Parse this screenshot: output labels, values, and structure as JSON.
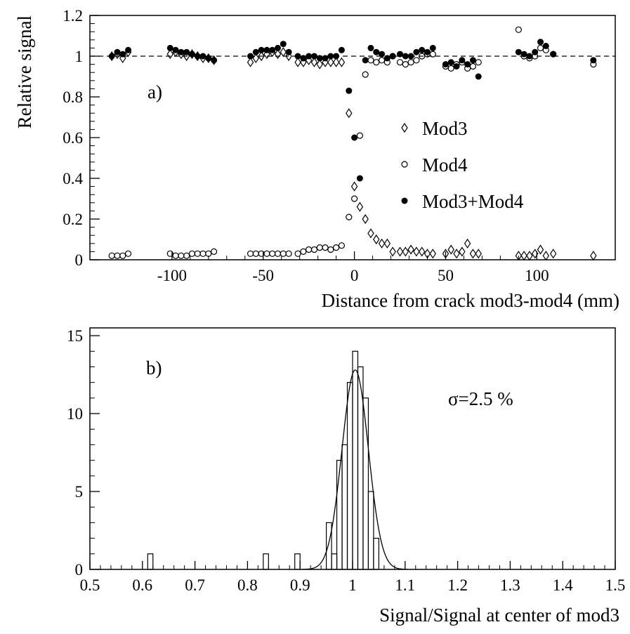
{
  "chart_data": [
    {
      "type": "scatter",
      "ylabel": "Relative signal",
      "xlabel": "Distance from crack mod3-mod4 (mm)",
      "annotation": "a)",
      "xlim": [
        -145,
        143
      ],
      "ylim": [
        0,
        1.2
      ],
      "xticks": [
        -100,
        -50,
        0,
        50,
        100
      ],
      "yticks": [
        0,
        0.2,
        0.4,
        0.6,
        0.8,
        1,
        1.2
      ],
      "hline": 1,
      "legend": "right",
      "x": [
        -133,
        -130,
        -127,
        -124,
        -101,
        -98,
        -95,
        -92,
        -89,
        -86,
        -83,
        -80,
        -77,
        -57,
        -54,
        -51,
        -48,
        -45,
        -42,
        -39,
        -36,
        -31,
        -28,
        -25,
        -22,
        -19,
        -16,
        -13,
        -10,
        -7,
        -3,
        0,
        3,
        6,
        9,
        12,
        15,
        18,
        21,
        25,
        28,
        31,
        34,
        37,
        40,
        43,
        50,
        53,
        56,
        59,
        62,
        65,
        68,
        90,
        93,
        96,
        99,
        102,
        105,
        109,
        131
      ],
      "series": [
        {
          "name": "Mod3",
          "marker": "diamond",
          "color": "#000000",
          "values": [
            1.0,
            1.01,
            0.99,
            1.02,
            1.01,
            1.02,
            1.01,
            1.0,
            1.01,
            1.0,
            0.99,
            0.99,
            0.98,
            0.97,
            0.99,
            1.0,
            1.01,
            1.02,
            1.01,
            1.02,
            1.0,
            0.97,
            0.97,
            0.98,
            0.97,
            0.96,
            0.97,
            0.97,
            0.97,
            0.97,
            0.72,
            0.36,
            0.26,
            0.2,
            0.13,
            0.1,
            0.08,
            0.08,
            0.04,
            0.04,
            0.04,
            0.05,
            0.04,
            0.04,
            0.03,
            0.03,
            0.03,
            0.05,
            0.03,
            0.04,
            0.08,
            0.03,
            0.03,
            0.02,
            0.02,
            0.02,
            0.03,
            0.05,
            0.02,
            0.03,
            0.02
          ]
        },
        {
          "name": "Mod4",
          "marker": "open-circle",
          "color": "#000000",
          "values": [
            0.02,
            0.02,
            0.02,
            0.03,
            0.03,
            0.02,
            0.02,
            0.02,
            0.03,
            0.03,
            0.03,
            0.03,
            0.04,
            0.03,
            0.03,
            0.03,
            0.03,
            0.03,
            0.03,
            0.03,
            0.03,
            0.03,
            0.04,
            0.05,
            0.05,
            0.06,
            0.06,
            0.05,
            0.06,
            0.07,
            0.21,
            0.3,
            0.61,
            0.91,
            0.98,
            0.97,
            0.98,
            0.97,
            1.0,
            0.97,
            0.96,
            0.97,
            0.98,
            1.0,
            1.01,
            1.01,
            0.95,
            0.94,
            0.96,
            0.97,
            0.94,
            0.95,
            0.97,
            1.13,
            1.0,
            0.99,
            1.0,
            1.04,
            1.03,
            1.01,
            0.96
          ]
        },
        {
          "name": "Mod3+Mod4",
          "marker": "filled-circle",
          "color": "#000000",
          "values": [
            1.0,
            1.02,
            1.01,
            1.03,
            1.04,
            1.03,
            1.02,
            1.02,
            1.01,
            1.0,
            1.0,
            0.99,
            0.98,
            1.0,
            1.02,
            1.03,
            1.03,
            1.03,
            1.04,
            1.06,
            1.02,
            1.0,
            0.99,
            1.0,
            1.0,
            0.99,
            0.99,
            1.0,
            1.0,
            1.03,
            0.83,
            0.6,
            0.4,
            0.98,
            1.04,
            1.02,
            1.01,
            0.99,
            1.0,
            1.01,
            1.0,
            1.0,
            1.02,
            1.03,
            1.02,
            1.04,
            0.96,
            0.97,
            0.95,
            0.98,
            0.96,
            0.98,
            0.9,
            1.02,
            1.01,
            1.0,
            1.02,
            1.07,
            1.05,
            1.01,
            0.98
          ]
        }
      ]
    },
    {
      "type": "histogram",
      "xlabel": "Signal/Signal at center of mod3",
      "annotations": [
        "b)",
        "σ=2.5 %"
      ],
      "xlim": [
        0.5,
        1.5
      ],
      "ylim": [
        0,
        15.5
      ],
      "xticks": [
        0.5,
        0.6,
        0.7,
        0.8,
        0.9,
        1,
        1.1,
        1.2,
        1.3,
        1.4,
        1.5
      ],
      "yticks": [
        0,
        5,
        10,
        15
      ],
      "bins": [
        0.6,
        0.61,
        0.62,
        0.63,
        0.64,
        0.65,
        0.66,
        0.67,
        0.68,
        0.69,
        0.7,
        0.71,
        0.72,
        0.73,
        0.74,
        0.75,
        0.76,
        0.77,
        0.78,
        0.79,
        0.8,
        0.81,
        0.82,
        0.83,
        0.84,
        0.85,
        0.86,
        0.87,
        0.88,
        0.89,
        0.9,
        0.91,
        0.92,
        0.93,
        0.94,
        0.95,
        0.96,
        0.97,
        0.98,
        0.99,
        1.0,
        1.01,
        1.02,
        1.03,
        1.04,
        1.05,
        1.06,
        1.07,
        1.08,
        1.09,
        1.1
      ],
      "counts": [
        0,
        1,
        0,
        0,
        0,
        0,
        0,
        0,
        0,
        0,
        0,
        0,
        0,
        0,
        0,
        0,
        0,
        0,
        0,
        0,
        0,
        0,
        0,
        1,
        0,
        0,
        0,
        0,
        0,
        1,
        0,
        0,
        0,
        0,
        0,
        3,
        1,
        7,
        8,
        12,
        14,
        13,
        11,
        5,
        2,
        0,
        0,
        0,
        0,
        0
      ],
      "fit": {
        "mean": 1.005,
        "sigma": 0.025,
        "amplitude": 12.8
      },
      "color": "#000000"
    }
  ]
}
